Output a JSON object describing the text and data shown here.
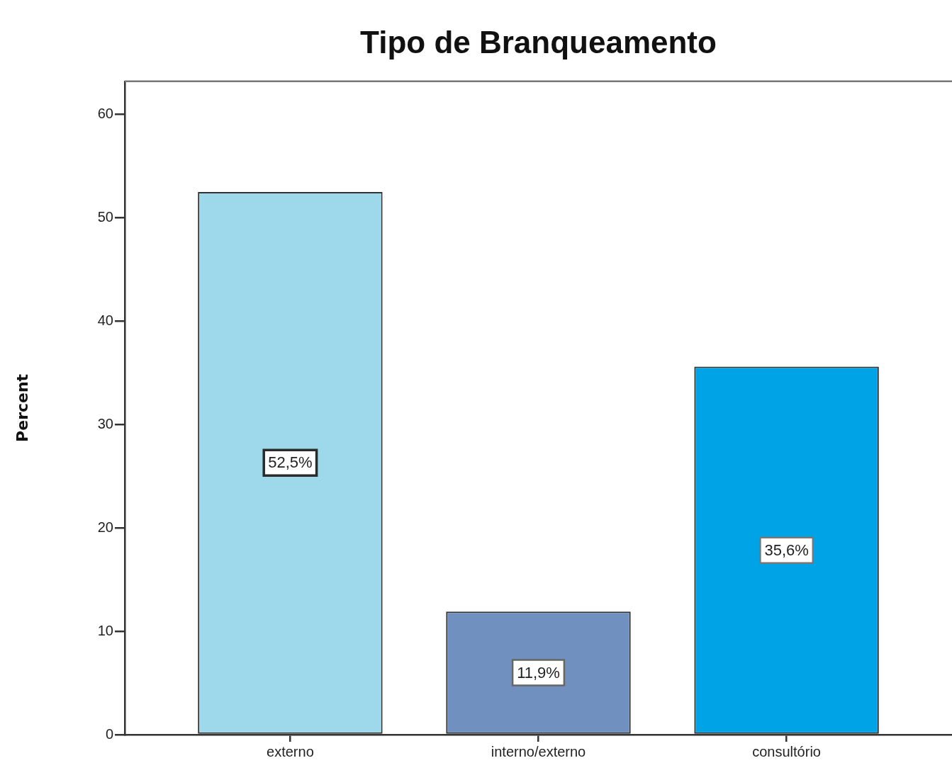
{
  "chart_data": {
    "type": "bar",
    "title": "Tipo de Branqueamento",
    "ylabel": "Percent",
    "categories": [
      "externo",
      "interno/externo",
      "consultório"
    ],
    "values": [
      52.5,
      11.9,
      35.6
    ],
    "colors": [
      "#9dd9ea",
      "#7090bf",
      "#00a3e6"
    ],
    "value_labels": [
      "52,5%",
      "11,9%",
      "35,6%"
    ],
    "ylim": [
      0,
      63.2
    ],
    "yticks": [
      0,
      10,
      20,
      30,
      40,
      50,
      60
    ]
  }
}
